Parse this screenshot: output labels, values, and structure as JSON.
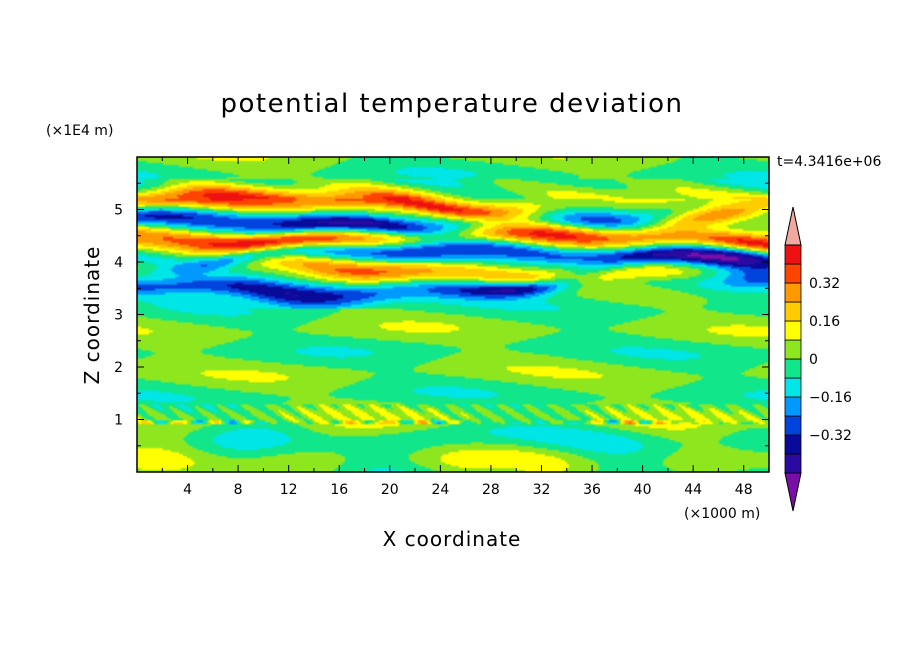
{
  "chart_data": {
    "type": "heatmap",
    "title": "potential temperature deviation",
    "xlabel": "X coordinate",
    "ylabel": "Z coordinate",
    "x_unit": "(×1000 m)",
    "y_unit": "(×1E4 m)",
    "time_label": "t=4.3416e+06",
    "xlim": [
      0,
      50
    ],
    "ylim": [
      0,
      6
    ],
    "x_ticks": [
      "4",
      "8",
      "12",
      "16",
      "20",
      "24",
      "28",
      "32",
      "36",
      "40",
      "44",
      "48"
    ],
    "y_ticks": [
      "1",
      "2",
      "3",
      "4",
      "5"
    ],
    "colorbar": {
      "levels": [
        -0.48,
        -0.4,
        -0.32,
        -0.24,
        -0.16,
        -0.08,
        0,
        0.08,
        0.16,
        0.24,
        0.32,
        0.4,
        0.48
      ],
      "colors": [
        "#7a0fa8",
        "#2a0aa0",
        "#0a0a9a",
        "#0044dd",
        "#0099ff",
        "#00e5e5",
        "#11e68a",
        "#8ee61e",
        "#ffff00",
        "#ffcc00",
        "#ff9900",
        "#ff4400",
        "#ee1111",
        "#f0a8a0"
      ],
      "labels": [
        "0.32",
        "0.16",
        "0",
        "−0.16",
        "−0.32"
      ],
      "label_values": [
        0.32,
        0.16,
        0,
        -0.16,
        -0.32
      ]
    },
    "field": {
      "description_bands": [
        {
          "z_center": 5.05,
          "amplitude": 0.42
        },
        {
          "z_center": 4.8,
          "amplitude": -0.4
        },
        {
          "z_center": 4.45,
          "amplitude": 0.45
        },
        {
          "z_center": 4.15,
          "amplitude": -0.45
        },
        {
          "z_center": 3.85,
          "amplitude": 0.4
        },
        {
          "z_center": 3.55,
          "amplitude": -0.45
        }
      ],
      "upper_active_layer_z": [
        3.3,
        5.4
      ],
      "lower_disturbance_z": 0.95
    }
  }
}
